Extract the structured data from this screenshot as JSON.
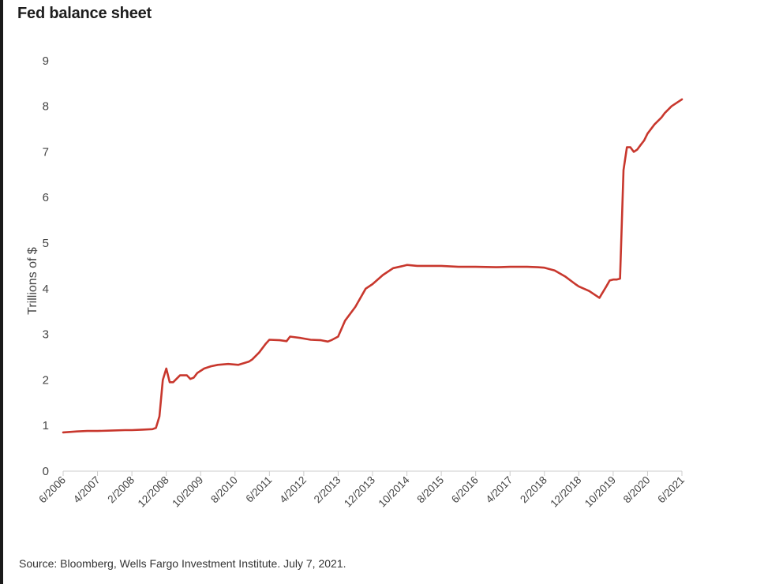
{
  "title": "Fed balance sheet",
  "source": "Source: Bloomberg, Wells Fargo Investment Institute. July 7, 2021.",
  "colors": {
    "line": "#c8372d",
    "axis": "#cccccc",
    "text": "#444444"
  },
  "chart_data": {
    "type": "line",
    "title": "Fed balance sheet",
    "xlabel": "",
    "ylabel": "Trillions of $",
    "ylim": [
      0,
      9
    ],
    "yticks": [
      0,
      1,
      2,
      3,
      4,
      5,
      6,
      7,
      8,
      9
    ],
    "grid": false,
    "xlim": [
      "2006-06",
      "2021-06"
    ],
    "x_tick_labels": [
      {
        "date": "2006-06",
        "label": "6/2006"
      },
      {
        "date": "2007-04",
        "label": "4/2007"
      },
      {
        "date": "2008-02",
        "label": "2/2008"
      },
      {
        "date": "2008-12",
        "label": "12/2008"
      },
      {
        "date": "2009-10",
        "label": "10/2009"
      },
      {
        "date": "2010-08",
        "label": "8/2010"
      },
      {
        "date": "2011-06",
        "label": "6/2011"
      },
      {
        "date": "2012-04",
        "label": "4/2012"
      },
      {
        "date": "2013-02",
        "label": "2/2013"
      },
      {
        "date": "2013-12",
        "label": "12/2013"
      },
      {
        "date": "2014-10",
        "label": "10/2014"
      },
      {
        "date": "2015-08",
        "label": "8/2015"
      },
      {
        "date": "2016-06",
        "label": "6/2016"
      },
      {
        "date": "2017-04",
        "label": "4/2017"
      },
      {
        "date": "2018-02",
        "label": "2/2018"
      },
      {
        "date": "2018-12",
        "label": "12/2018"
      },
      {
        "date": "2019-10",
        "label": "10/2019"
      },
      {
        "date": "2020-08",
        "label": "8/2020"
      },
      {
        "date": "2021-06",
        "label": "6/2021"
      }
    ],
    "series": [
      {
        "x": [
          "2006-06",
          "2006-08",
          "2006-10",
          "2007-01",
          "2007-04",
          "2007-08",
          "2007-12",
          "2008-02",
          "2008-05",
          "2008-08",
          "2008-09",
          "2008-10",
          "2008-11",
          "2008-12",
          "2009-01",
          "2009-02",
          "2009-04",
          "2009-06",
          "2009-07",
          "2009-08",
          "2009-09",
          "2009-11",
          "2010-01",
          "2010-03",
          "2010-06",
          "2010-09",
          "2010-12",
          "2011-01",
          "2011-03",
          "2011-05",
          "2011-06",
          "2011-09",
          "2011-11",
          "2011-12",
          "2012-03",
          "2012-06",
          "2012-09",
          "2012-11",
          "2012-12",
          "2013-02",
          "2013-04",
          "2013-07",
          "2013-10",
          "2013-12",
          "2014-03",
          "2014-06",
          "2014-09",
          "2014-10",
          "2015-01",
          "2015-06",
          "2015-08",
          "2016-01",
          "2016-06",
          "2016-12",
          "2017-04",
          "2017-09",
          "2017-12",
          "2018-02",
          "2018-05",
          "2018-08",
          "2018-11",
          "2018-12",
          "2019-03",
          "2019-06",
          "2019-08",
          "2019-09",
          "2019-10",
          "2019-11",
          "2019-12",
          "2020-01",
          "2020-02",
          "2020-03",
          "2020-04",
          "2020-05",
          "2020-06",
          "2020-07",
          "2020-08",
          "2020-10",
          "2020-12",
          "2021-01",
          "2021-03",
          "2021-05",
          "2021-06"
        ],
        "values": [
          0.85,
          0.86,
          0.87,
          0.88,
          0.88,
          0.89,
          0.9,
          0.9,
          0.91,
          0.92,
          0.95,
          1.2,
          2.0,
          2.25,
          1.95,
          1.95,
          2.1,
          2.1,
          2.02,
          2.05,
          2.15,
          2.25,
          2.3,
          2.33,
          2.35,
          2.33,
          2.4,
          2.45,
          2.6,
          2.8,
          2.88,
          2.87,
          2.85,
          2.95,
          2.92,
          2.88,
          2.87,
          2.84,
          2.87,
          2.95,
          3.3,
          3.6,
          4.0,
          4.1,
          4.3,
          4.45,
          4.5,
          4.52,
          4.5,
          4.5,
          4.5,
          4.48,
          4.48,
          4.47,
          4.48,
          4.48,
          4.47,
          4.46,
          4.4,
          4.27,
          4.1,
          4.05,
          3.95,
          3.8,
          4.05,
          4.18,
          4.2,
          4.2,
          4.22,
          6.6,
          7.1,
          7.1,
          7.0,
          7.05,
          7.15,
          7.25,
          7.4,
          7.6,
          7.75,
          7.85,
          8.0,
          8.1,
          8.15
        ]
      }
    ]
  }
}
